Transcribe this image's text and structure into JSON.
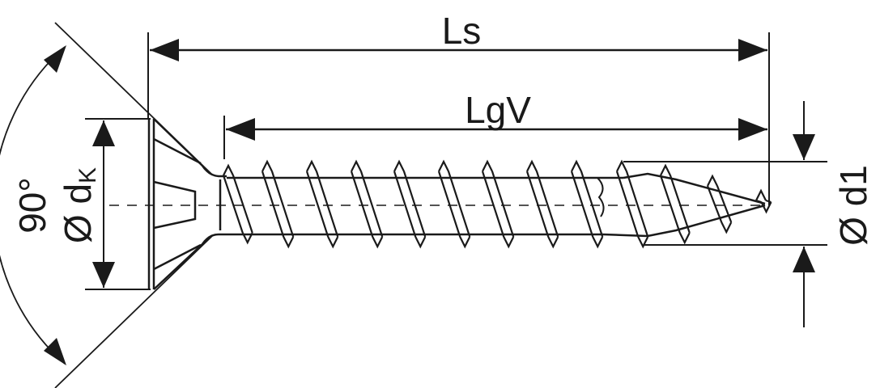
{
  "labels": {
    "overall_length": "Ls",
    "thread_length": "LgV",
    "head_angle": "90°",
    "head_diameter_symbol": "Ø d",
    "head_diameter_subscript": "K",
    "thread_diameter": "Ø d1"
  },
  "colors": {
    "line": "#1a1a1a",
    "background": "#ffffff"
  }
}
